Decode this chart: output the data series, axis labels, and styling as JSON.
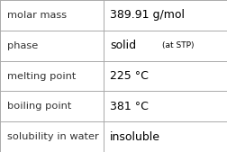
{
  "rows": [
    {
      "label": "molar mass",
      "value": "389.91 g/mol",
      "value2": null
    },
    {
      "label": "phase",
      "value": "solid",
      "value2": "(at STP)"
    },
    {
      "label": "melting point",
      "value": "225 °C",
      "value2": null
    },
    {
      "label": "boiling point",
      "value": "381 °C",
      "value2": null
    },
    {
      "label": "solubility in water",
      "value": "insoluble",
      "value2": null
    }
  ],
  "background_color": "#ffffff",
  "border_color": "#aaaaaa",
  "label_fontsize": 8.2,
  "value_fontsize": 9.0,
  "small_fontsize": 6.5,
  "label_color": "#333333",
  "value_color": "#000000",
  "col_split": 0.455
}
